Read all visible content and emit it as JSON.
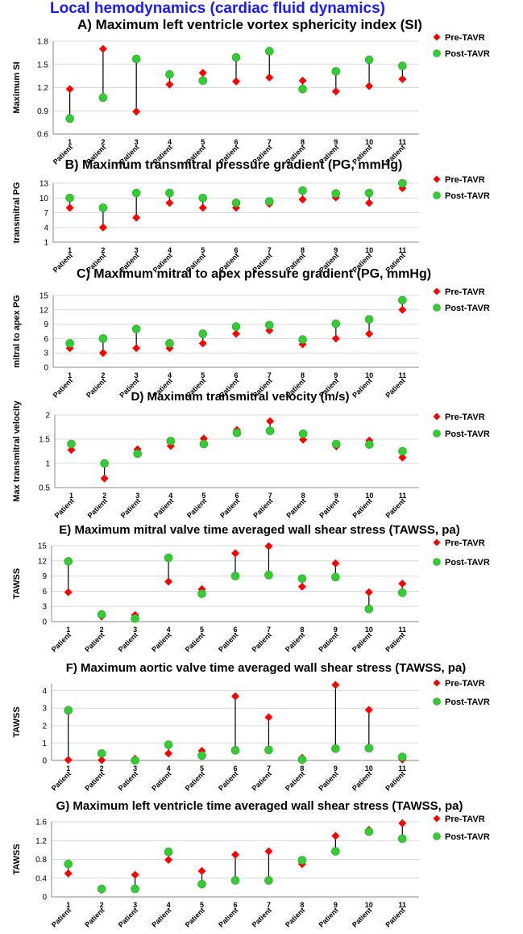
{
  "figure_title": "Local hemodynamics (cardiac fluid dynamics)",
  "colors": {
    "title": "#1a1aff",
    "pre": "#ff0000",
    "post": "#33cc33",
    "connector": "#000000",
    "gridline": "#d9d9d9"
  },
  "legend": {
    "pre": "Pre-TAVR",
    "post": "Post-TAVR"
  },
  "category_prefix": "Patient",
  "chart_data": [
    {
      "type": "scatter",
      "title": "A) Maximum left ventricle vortex sphericity index (SI)",
      "ylabel": "Maximum SI",
      "categories": [
        "1",
        "2",
        "3",
        "4",
        "5",
        "6",
        "7",
        "8",
        "9",
        "10",
        "11"
      ],
      "ylim": [
        0.6,
        1.8
      ],
      "yticks": [
        "0.6",
        "0.9",
        "1.2",
        "1.5",
        "1.8"
      ],
      "series": [
        {
          "name": "Pre-TAVR",
          "values": [
            1.18,
            1.7,
            0.89,
            1.24,
            1.39,
            1.28,
            1.33,
            1.29,
            1.15,
            1.22,
            1.31
          ]
        },
        {
          "name": "Post-TAVR",
          "values": [
            0.8,
            1.07,
            1.57,
            1.37,
            1.29,
            1.59,
            1.67,
            1.18,
            1.41,
            1.56,
            1.48
          ]
        }
      ]
    },
    {
      "type": "scatter",
      "title": "B) Maximum transmitral pressure gradient (PG, mmHg)",
      "ylabel": "transmitral PG",
      "categories": [
        "1",
        "2",
        "3",
        "4",
        "5",
        "6",
        "7",
        "8",
        "9",
        "10",
        "11"
      ],
      "ylim": [
        1,
        13
      ],
      "yticks": [
        "1",
        "4",
        "7",
        "10",
        "13"
      ],
      "series": [
        {
          "name": "Pre-TAVR",
          "values": [
            8.0,
            4.0,
            6.0,
            9.0,
            8.0,
            8.0,
            8.8,
            9.7,
            10.1,
            9.0,
            12.0
          ]
        },
        {
          "name": "Post-TAVR",
          "values": [
            10.0,
            8.0,
            11.0,
            11.0,
            10.0,
            9.0,
            9.3,
            11.5,
            10.9,
            11.0,
            13.0
          ]
        }
      ]
    },
    {
      "type": "scatter",
      "title": "C) Maximum mitral to apex pressure gradient (PG, mmHg)",
      "ylabel": "mitral to apex PG",
      "categories": [
        "1",
        "2",
        "3",
        "4",
        "5",
        "6",
        "7",
        "8",
        "9",
        "10",
        "11"
      ],
      "ylim": [
        0,
        15
      ],
      "yticks": [
        "0",
        "3",
        "6",
        "9",
        "12",
        "15"
      ],
      "series": [
        {
          "name": "Pre-TAVR",
          "values": [
            4.0,
            3.0,
            4.0,
            4.0,
            5.0,
            7.0,
            7.7,
            4.8,
            6.0,
            7.0,
            12.0
          ]
        },
        {
          "name": "Post-TAVR",
          "values": [
            5.0,
            6.0,
            8.0,
            5.0,
            7.0,
            8.5,
            8.8,
            5.8,
            9.1,
            10.0,
            14.0
          ]
        }
      ]
    },
    {
      "type": "scatter",
      "title": "D) Maximum transmitral velocity (m/s)",
      "ylabel": "Max transmitral velocity",
      "categories": [
        "1",
        "2",
        "3",
        "4",
        "5",
        "6",
        "7",
        "8",
        "9",
        "10",
        "11"
      ],
      "ylim": [
        0.5,
        2
      ],
      "yticks": [
        "0.5",
        "1",
        "1.5",
        "2"
      ],
      "series": [
        {
          "name": "Pre-TAVR",
          "values": [
            1.28,
            0.69,
            1.29,
            1.36,
            1.51,
            1.69,
            1.87,
            1.49,
            1.35,
            1.47,
            1.12
          ]
        },
        {
          "name": "Post-TAVR",
          "values": [
            1.4,
            1.0,
            1.2,
            1.46,
            1.4,
            1.63,
            1.67,
            1.61,
            1.4,
            1.39,
            1.25
          ]
        }
      ]
    },
    {
      "type": "scatter",
      "title": "E) Maximum mitral valve time averaged wall shear stress (TAWSS, pa)",
      "ylabel": "TAWSS",
      "categories": [
        "1",
        "2",
        "3",
        "4",
        "5",
        "6",
        "7",
        "8",
        "9",
        "10",
        "11"
      ],
      "ylim": [
        0,
        15
      ],
      "yticks": [
        "0",
        "3",
        "6",
        "9",
        "12",
        "15"
      ],
      "series": [
        {
          "name": "Pre-TAVR",
          "values": [
            5.8,
            1.0,
            1.3,
            7.9,
            6.4,
            13.5,
            14.9,
            6.9,
            11.5,
            5.8,
            7.5
          ]
        },
        {
          "name": "Post-TAVR",
          "values": [
            11.9,
            1.4,
            0.6,
            12.6,
            5.5,
            9.0,
            9.2,
            8.5,
            8.8,
            2.5,
            5.7
          ]
        }
      ]
    },
    {
      "type": "scatter",
      "title": "F) Maximum aortic valve time averaged wall shear stress (TAWSS, pa)",
      "ylabel": "TAWSS",
      "categories": [
        "1",
        "2",
        "3",
        "4",
        "5",
        "6",
        "7",
        "8",
        "9",
        "10",
        "11"
      ],
      "ylim": [
        0,
        4.4
      ],
      "yticks": [
        "0",
        "1",
        "2",
        "3",
        "4"
      ],
      "series": [
        {
          "name": "Pre-TAVR",
          "values": [
            0.03,
            0.02,
            0.1,
            0.4,
            0.55,
            3.68,
            2.48,
            0.15,
            4.33,
            2.9,
            0.05
          ]
        },
        {
          "name": "Post-TAVR",
          "values": [
            2.88,
            0.4,
            0.0,
            0.9,
            0.28,
            0.58,
            0.6,
            0.05,
            0.68,
            0.7,
            0.2
          ]
        }
      ]
    },
    {
      "type": "scatter",
      "title": "G) Maximum left ventricle time averaged wall shear stress (TAWSS, pa)",
      "ylabel": "TAWSS",
      "categories": [
        "1",
        "2",
        "3",
        "4",
        "5",
        "6",
        "7",
        "8",
        "9",
        "10",
        "11"
      ],
      "ylim": [
        0,
        1.6
      ],
      "yticks": [
        "0",
        "0.4",
        "0.8",
        "1.2",
        "1.6"
      ],
      "series": [
        {
          "name": "Pre-TAVR",
          "values": [
            0.5,
            0.15,
            0.47,
            0.79,
            0.55,
            0.9,
            0.97,
            0.7,
            1.3,
            1.43,
            1.57
          ]
        },
        {
          "name": "Post-TAVR",
          "values": [
            0.7,
            0.17,
            0.17,
            0.96,
            0.27,
            0.35,
            0.35,
            0.78,
            0.97,
            1.39,
            1.24
          ]
        }
      ]
    }
  ]
}
